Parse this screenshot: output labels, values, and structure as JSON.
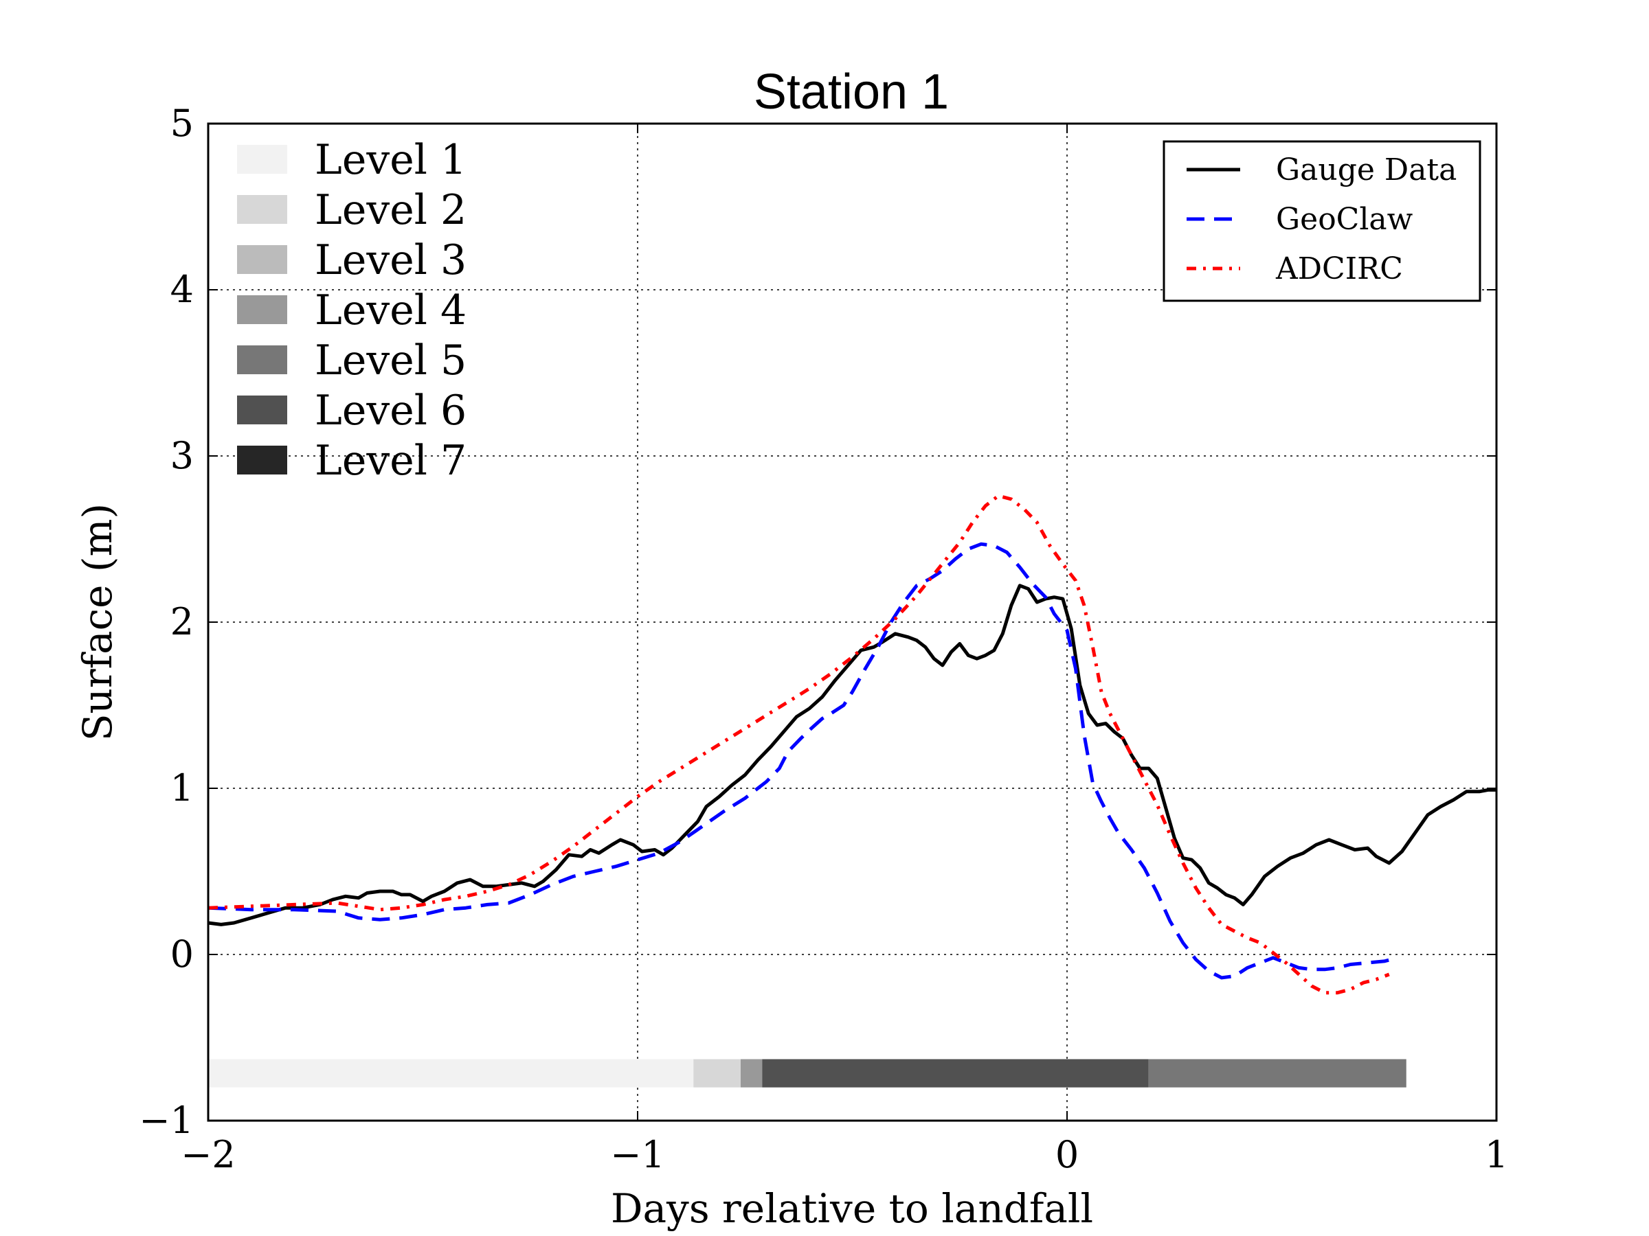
{
  "chart_data": {
    "type": "line",
    "title": "Station 1",
    "xlabel": "Days relative to landfall",
    "ylabel": "Surface (m)",
    "xlim": [
      -2,
      1
    ],
    "ylim": [
      -1,
      5
    ],
    "grid": true,
    "xticks": [
      {
        "value": -2,
        "label": "−2"
      },
      {
        "value": -1,
        "label": "−1"
      },
      {
        "value": 0,
        "label": "0"
      },
      {
        "value": 1,
        "label": "1"
      }
    ],
    "yticks": [
      {
        "value": -1,
        "label": "−1"
      },
      {
        "value": 0,
        "label": "0"
      },
      {
        "value": 1,
        "label": "1"
      },
      {
        "value": 2,
        "label": "2"
      },
      {
        "value": 3,
        "label": "3"
      },
      {
        "value": 4,
        "label": "4"
      },
      {
        "value": 5,
        "label": "5"
      }
    ],
    "legend": {
      "location": "top-right",
      "entries": [
        "Gauge Data",
        "GeoClaw",
        "ADCIRC"
      ]
    },
    "series": [
      {
        "name": "Gauge Data",
        "color": "#000000",
        "style": "solid",
        "points": [
          [
            -2.0,
            0.19
          ],
          [
            -1.97,
            0.18
          ],
          [
            -1.94,
            0.19
          ],
          [
            -1.9,
            0.22
          ],
          [
            -1.86,
            0.25
          ],
          [
            -1.82,
            0.28
          ],
          [
            -1.78,
            0.28
          ],
          [
            -1.74,
            0.3
          ],
          [
            -1.71,
            0.33
          ],
          [
            -1.68,
            0.35
          ],
          [
            -1.65,
            0.34
          ],
          [
            -1.63,
            0.37
          ],
          [
            -1.6,
            0.38
          ],
          [
            -1.57,
            0.38
          ],
          [
            -1.55,
            0.36
          ],
          [
            -1.53,
            0.36
          ],
          [
            -1.5,
            0.32
          ],
          [
            -1.48,
            0.35
          ],
          [
            -1.45,
            0.38
          ],
          [
            -1.42,
            0.43
          ],
          [
            -1.39,
            0.45
          ],
          [
            -1.36,
            0.41
          ],
          [
            -1.33,
            0.41
          ],
          [
            -1.3,
            0.42
          ],
          [
            -1.27,
            0.43
          ],
          [
            -1.24,
            0.41
          ],
          [
            -1.22,
            0.44
          ],
          [
            -1.19,
            0.51
          ],
          [
            -1.16,
            0.6
          ],
          [
            -1.13,
            0.59
          ],
          [
            -1.11,
            0.63
          ],
          [
            -1.09,
            0.61
          ],
          [
            -1.06,
            0.66
          ],
          [
            -1.04,
            0.69
          ],
          [
            -1.01,
            0.66
          ],
          [
            -0.99,
            0.62
          ],
          [
            -0.96,
            0.63
          ],
          [
            -0.94,
            0.6
          ],
          [
            -0.92,
            0.64
          ],
          [
            -0.89,
            0.72
          ],
          [
            -0.86,
            0.8
          ],
          [
            -0.84,
            0.89
          ],
          [
            -0.81,
            0.95
          ],
          [
            -0.78,
            1.02
          ],
          [
            -0.75,
            1.08
          ],
          [
            -0.72,
            1.17
          ],
          [
            -0.69,
            1.25
          ],
          [
            -0.66,
            1.34
          ],
          [
            -0.63,
            1.43
          ],
          [
            -0.6,
            1.48
          ],
          [
            -0.57,
            1.55
          ],
          [
            -0.54,
            1.65
          ],
          [
            -0.51,
            1.74
          ],
          [
            -0.48,
            1.83
          ],
          [
            -0.45,
            1.85
          ],
          [
            -0.43,
            1.88
          ],
          [
            -0.4,
            1.93
          ],
          [
            -0.37,
            1.91
          ],
          [
            -0.35,
            1.89
          ],
          [
            -0.33,
            1.85
          ],
          [
            -0.31,
            1.78
          ],
          [
            -0.29,
            1.74
          ],
          [
            -0.27,
            1.82
          ],
          [
            -0.25,
            1.87
          ],
          [
            -0.23,
            1.8
          ],
          [
            -0.21,
            1.78
          ],
          [
            -0.19,
            1.8
          ],
          [
            -0.17,
            1.83
          ],
          [
            -0.15,
            1.93
          ],
          [
            -0.13,
            2.1
          ],
          [
            -0.11,
            2.22
          ],
          [
            -0.09,
            2.2
          ],
          [
            -0.07,
            2.12
          ],
          [
            -0.05,
            2.14
          ],
          [
            -0.03,
            2.15
          ],
          [
            -0.01,
            2.14
          ],
          [
            0.01,
            1.96
          ],
          [
            0.03,
            1.62
          ],
          [
            0.05,
            1.45
          ],
          [
            0.07,
            1.38
          ],
          [
            0.09,
            1.39
          ],
          [
            0.11,
            1.34
          ],
          [
            0.13,
            1.3
          ],
          [
            0.15,
            1.2
          ],
          [
            0.17,
            1.12
          ],
          [
            0.19,
            1.12
          ],
          [
            0.21,
            1.06
          ],
          [
            0.23,
            0.88
          ],
          [
            0.25,
            0.7
          ],
          [
            0.27,
            0.58
          ],
          [
            0.29,
            0.57
          ],
          [
            0.31,
            0.52
          ],
          [
            0.33,
            0.43
          ],
          [
            0.35,
            0.4
          ],
          [
            0.37,
            0.36
          ],
          [
            0.39,
            0.34
          ],
          [
            0.41,
            0.3
          ],
          [
            0.43,
            0.36
          ],
          [
            0.46,
            0.47
          ],
          [
            0.49,
            0.53
          ],
          [
            0.52,
            0.58
          ],
          [
            0.55,
            0.61
          ],
          [
            0.58,
            0.66
          ],
          [
            0.61,
            0.69
          ],
          [
            0.64,
            0.66
          ],
          [
            0.67,
            0.63
          ],
          [
            0.7,
            0.64
          ],
          [
            0.72,
            0.59
          ],
          [
            0.75,
            0.55
          ],
          [
            0.78,
            0.62
          ],
          [
            0.81,
            0.73
          ],
          [
            0.84,
            0.84
          ],
          [
            0.87,
            0.89
          ],
          [
            0.9,
            0.93
          ],
          [
            0.93,
            0.98
          ],
          [
            0.96,
            0.98
          ],
          [
            0.98,
            0.99
          ],
          [
            1.0,
            0.99
          ]
        ]
      },
      {
        "name": "GeoClaw",
        "color": "#0000ff",
        "style": "dashed",
        "points": [
          [
            -2.0,
            0.28
          ],
          [
            -1.9,
            0.27
          ],
          [
            -1.8,
            0.27
          ],
          [
            -1.7,
            0.26
          ],
          [
            -1.65,
            0.22
          ],
          [
            -1.6,
            0.21
          ],
          [
            -1.55,
            0.22
          ],
          [
            -1.5,
            0.24
          ],
          [
            -1.45,
            0.27
          ],
          [
            -1.4,
            0.28
          ],
          [
            -1.35,
            0.3
          ],
          [
            -1.3,
            0.31
          ],
          [
            -1.25,
            0.36
          ],
          [
            -1.2,
            0.42
          ],
          [
            -1.15,
            0.47
          ],
          [
            -1.1,
            0.5
          ],
          [
            -1.05,
            0.53
          ],
          [
            -1.0,
            0.57
          ],
          [
            -0.95,
            0.61
          ],
          [
            -0.9,
            0.68
          ],
          [
            -0.85,
            0.77
          ],
          [
            -0.8,
            0.86
          ],
          [
            -0.75,
            0.94
          ],
          [
            -0.7,
            1.04
          ],
          [
            -0.67,
            1.12
          ],
          [
            -0.65,
            1.22
          ],
          [
            -0.62,
            1.3
          ],
          [
            -0.6,
            1.35
          ],
          [
            -0.57,
            1.42
          ],
          [
            -0.55,
            1.45
          ],
          [
            -0.52,
            1.5
          ],
          [
            -0.5,
            1.58
          ],
          [
            -0.47,
            1.72
          ],
          [
            -0.44,
            1.85
          ],
          [
            -0.41,
            2.0
          ],
          [
            -0.38,
            2.12
          ],
          [
            -0.35,
            2.22
          ],
          [
            -0.32,
            2.26
          ],
          [
            -0.29,
            2.31
          ],
          [
            -0.26,
            2.38
          ],
          [
            -0.23,
            2.44
          ],
          [
            -0.2,
            2.47
          ],
          [
            -0.17,
            2.46
          ],
          [
            -0.14,
            2.42
          ],
          [
            -0.11,
            2.33
          ],
          [
            -0.08,
            2.23
          ],
          [
            -0.05,
            2.15
          ],
          [
            -0.03,
            2.05
          ],
          [
            0.0,
            1.95
          ],
          [
            0.02,
            1.72
          ],
          [
            0.04,
            1.32
          ],
          [
            0.06,
            1.03
          ],
          [
            0.08,
            0.92
          ],
          [
            0.1,
            0.82
          ],
          [
            0.12,
            0.73
          ],
          [
            0.15,
            0.63
          ],
          [
            0.18,
            0.52
          ],
          [
            0.21,
            0.37
          ],
          [
            0.24,
            0.2
          ],
          [
            0.27,
            0.07
          ],
          [
            0.3,
            -0.03
          ],
          [
            0.33,
            -0.1
          ],
          [
            0.36,
            -0.14
          ],
          [
            0.39,
            -0.13
          ],
          [
            0.42,
            -0.08
          ],
          [
            0.45,
            -0.05
          ],
          [
            0.48,
            -0.02
          ],
          [
            0.51,
            -0.05
          ],
          [
            0.54,
            -0.08
          ],
          [
            0.57,
            -0.09
          ],
          [
            0.6,
            -0.09
          ],
          [
            0.63,
            -0.08
          ],
          [
            0.66,
            -0.06
          ],
          [
            0.7,
            -0.05
          ],
          [
            0.74,
            -0.04
          ],
          [
            0.77,
            -0.02
          ]
        ]
      },
      {
        "name": "ADCIRC",
        "color": "#ff0000",
        "style": "dash-dot",
        "points": [
          [
            -2.0,
            0.28
          ],
          [
            -1.9,
            0.29
          ],
          [
            -1.8,
            0.3
          ],
          [
            -1.7,
            0.31
          ],
          [
            -1.65,
            0.29
          ],
          [
            -1.6,
            0.27
          ],
          [
            -1.55,
            0.28
          ],
          [
            -1.5,
            0.3
          ],
          [
            -1.45,
            0.33
          ],
          [
            -1.4,
            0.35
          ],
          [
            -1.35,
            0.38
          ],
          [
            -1.3,
            0.42
          ],
          [
            -1.25,
            0.48
          ],
          [
            -1.2,
            0.56
          ],
          [
            -1.15,
            0.65
          ],
          [
            -1.1,
            0.75
          ],
          [
            -1.05,
            0.85
          ],
          [
            -1.0,
            0.95
          ],
          [
            -0.95,
            1.04
          ],
          [
            -0.9,
            1.12
          ],
          [
            -0.85,
            1.2
          ],
          [
            -0.8,
            1.28
          ],
          [
            -0.75,
            1.36
          ],
          [
            -0.7,
            1.44
          ],
          [
            -0.65,
            1.52
          ],
          [
            -0.6,
            1.6
          ],
          [
            -0.55,
            1.69
          ],
          [
            -0.5,
            1.79
          ],
          [
            -0.45,
            1.9
          ],
          [
            -0.4,
            2.02
          ],
          [
            -0.35,
            2.16
          ],
          [
            -0.3,
            2.32
          ],
          [
            -0.25,
            2.48
          ],
          [
            -0.22,
            2.6
          ],
          [
            -0.19,
            2.7
          ],
          [
            -0.16,
            2.76
          ],
          [
            -0.13,
            2.74
          ],
          [
            -0.1,
            2.68
          ],
          [
            -0.07,
            2.6
          ],
          [
            -0.04,
            2.46
          ],
          [
            -0.01,
            2.35
          ],
          [
            0.02,
            2.25
          ],
          [
            0.04,
            2.1
          ],
          [
            0.06,
            1.85
          ],
          [
            0.08,
            1.58
          ],
          [
            0.1,
            1.45
          ],
          [
            0.12,
            1.35
          ],
          [
            0.15,
            1.2
          ],
          [
            0.18,
            1.05
          ],
          [
            0.21,
            0.9
          ],
          [
            0.24,
            0.72
          ],
          [
            0.27,
            0.55
          ],
          [
            0.3,
            0.4
          ],
          [
            0.33,
            0.28
          ],
          [
            0.36,
            0.18
          ],
          [
            0.39,
            0.14
          ],
          [
            0.42,
            0.1
          ],
          [
            0.45,
            0.07
          ],
          [
            0.48,
            0.01
          ],
          [
            0.51,
            -0.05
          ],
          [
            0.54,
            -0.12
          ],
          [
            0.57,
            -0.19
          ],
          [
            0.6,
            -0.23
          ],
          [
            0.63,
            -0.23
          ],
          [
            0.66,
            -0.21
          ],
          [
            0.69,
            -0.17
          ],
          [
            0.72,
            -0.15
          ],
          [
            0.75,
            -0.12
          ]
        ]
      }
    ],
    "amr_levels": {
      "legend": [
        {
          "label": "Level 1",
          "color": "#f2f2f2"
        },
        {
          "label": "Level 2",
          "color": "#d7d7d7"
        },
        {
          "label": "Level 3",
          "color": "#bbbbbb"
        },
        {
          "label": "Level 4",
          "color": "#999999"
        },
        {
          "label": "Level 5",
          "color": "#777777"
        },
        {
          "label": "Level 6",
          "color": "#515151"
        },
        {
          "label": "Level 7",
          "color": "#262626"
        }
      ],
      "bar_y_range": [
        -0.8,
        -0.63
      ],
      "segments": [
        {
          "level": "Level 1",
          "start": -2.0,
          "end": -0.87
        },
        {
          "level": "Level 2",
          "start": -0.87,
          "end": -0.76
        },
        {
          "level": "Level 4",
          "start": -0.76,
          "end": -0.71
        },
        {
          "level": "Level 6",
          "start": -0.71,
          "end": 0.19
        },
        {
          "level": "Level 5",
          "start": 0.19,
          "end": 0.79
        }
      ]
    }
  }
}
